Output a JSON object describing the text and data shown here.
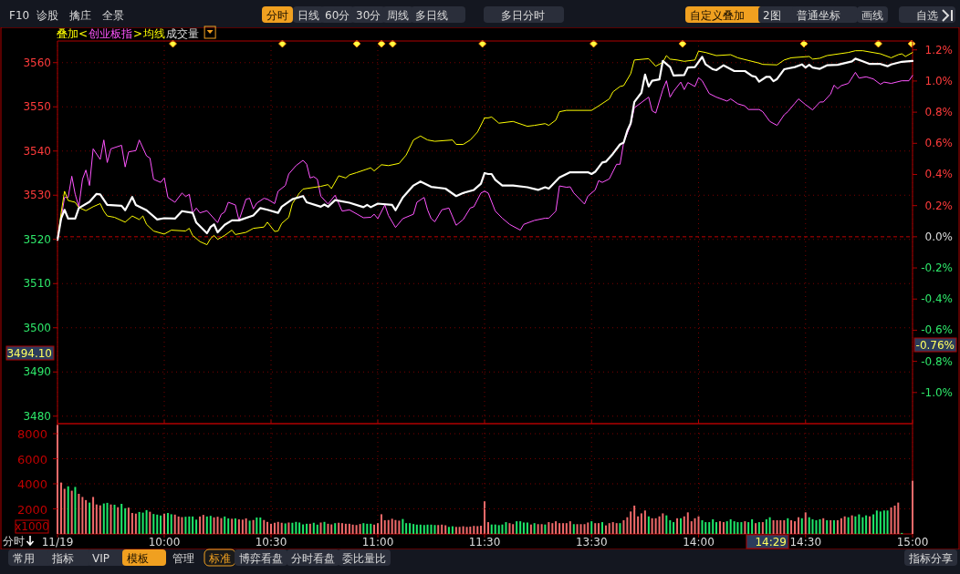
{
  "chart_data": [
    {
      "type": "other",
      "annotations": [
        "F10",
        "诊股",
        "擒庄",
        "全景",
        "分时",
        "日线",
        "60分",
        "30分",
        "周线",
        "多日线",
        "多日分时",
        "自定义叠加",
        "2图",
        "普通坐标",
        "画线",
        "自选",
        "分时",
        "常用",
        "指标",
        "VIP",
        "模板",
        "管理",
        "标准",
        "博弈看盘",
        "分时看盘",
        "委比量比",
        "指标分享"
      ]
    },
    {
      "type": "line",
      "xlim": [
        9.5,
        11.5
      ],
      "ylim": [
        3478.3,
        3564.9
      ],
      "xticks": [
        {
          "value": 9.5,
          "label": null
        },
        {
          "value": 10,
          "label": null
        },
        {
          "value": 10.5,
          "label": null
        },
        {
          "value": 11,
          "label": null
        },
        {
          "value": 11.5,
          "label": null
        }
      ],
      "yticks": [
        3480,
        3490,
        3500,
        3510,
        3520,
        3530,
        3540,
        3550,
        3560
      ],
      "tick_labels": "y",
      "grid": true,
      "ref_lines": [
        {
          "axis": "y",
          "value": 3520.6,
          "color": "#c00000",
          "line_style": "dashed"
        }
      ],
      "annotations": [
        "叠加<",
        ">",
        "成交量",
        "3494.10"
      ],
      "series": [
        {
          "name": "创业板指",
          "color": "#ff55ff",
          "x": [
            9.5,
            9.517,
            9.533,
            9.55,
            9.567,
            9.583,
            9.6,
            9.617,
            9.633,
            9.65,
            9.667,
            9.7,
            9.717,
            9.733,
            9.75,
            9.8,
            9.817,
            9.833,
            9.867,
            9.883,
            9.917,
            9.933,
            9.95,
            9.983,
            10,
            10.017,
            10.05,
            10.083,
            10.1,
            10.117,
            10.133,
            10.15,
            10.167,
            10.2,
            10.25,
            10.267,
            10.283,
            10.3,
            10.333,
            10.35,
            10.383,
            10.4,
            10.417,
            10.433,
            10.467,
            10.483,
            10.517,
            10.533,
            10.567,
            10.583,
            10.617,
            10.65,
            10.667,
            10.683,
            10.7,
            10.717,
            10.733,
            10.767,
            10.8,
            10.833,
            10.867,
            10.933,
            10.967,
            10.983,
            11,
            11.033,
            11.05,
            11.083,
            11.117,
            11.167,
            11.183,
            11.217,
            11.233,
            11.25,
            11.267,
            11.3,
            11.333,
            11.367,
            11.4,
            11.433,
            11.45,
            11.483,
            11.5
          ],
          "values": [
            3519.9,
            3524.7,
            3529.5,
            3529.5,
            3534.3,
            3530.2,
            3527.4,
            3533.6,
            3535.7,
            3532.2,
            3540.5,
            3538.1,
            3542.5,
            3537.4,
            3540.5,
            3541.3,
            3536.4,
            3539.8,
            3540.1,
            3542.5,
            3538.9,
            3538.4,
            3533.6,
            3532.9,
            3533.9,
            3529.5,
            3528.4,
            3530.5,
            3529.7,
            3530.2,
            3526.0,
            3527.1,
            3526.0,
            3526.5,
            3523.8,
            3525.7,
            3526.2,
            3528.4,
            3527.8,
            3524.3,
            3529.1,
            3529.3,
            3526.9,
            3528.2,
            3529.3,
            3529.1,
            3528.1,
            3530.9,
            3532.2,
            3534.8,
            3536.7,
            3537.9,
            3537.0,
            3533.9,
            3534.2,
            3533.6,
            3529.8,
            3528.0,
            3530.0,
            3526.4,
            3526.7,
            3524.9,
            3525.0,
            3525.7,
            3524.7,
            3527.8,
            3525.4,
            3522.7,
            3524.7,
            3525.7,
            3528.4,
            3529.5,
            3526.7,
            3524.7,
            3524.0,
            3526.7,
            3527.1,
            3523.2,
            3524.5,
            3527.1,
            3527.4,
            3530.5,
            3530.9
          ]
        },
        {
          "name": "均线",
          "color": "#ffff00",
          "x": [
            9.5,
            9.517,
            9.533,
            9.55,
            9.583,
            9.6,
            9.633,
            9.667,
            9.7,
            9.717,
            9.733,
            9.767,
            9.817,
            9.85,
            9.883,
            9.9,
            9.917,
            9.95,
            10,
            10.033,
            10.1,
            10.117,
            10.133,
            10.167,
            10.2,
            10.217,
            10.233,
            10.25,
            10.283,
            10.317,
            10.333,
            10.383,
            10.417,
            10.467,
            10.483,
            10.517,
            10.533,
            10.55,
            10.583,
            10.6,
            10.633,
            10.65,
            10.733,
            10.767,
            10.783,
            10.817,
            10.85,
            10.867,
            10.9,
            10.967,
            10.983,
            11.017,
            11.05,
            11.1,
            11.133,
            11.167,
            11.2,
            11.233,
            11.267,
            11.35,
            11.367,
            11.4,
            11.433,
            11.467,
            11.5
          ],
          "values": [
            3519.9,
            3526.0,
            3530.9,
            3528.8,
            3528.4,
            3527.2,
            3526.5,
            3527.4,
            3528.1,
            3526.4,
            3525.3,
            3525.0,
            3523.9,
            3525.3,
            3524.5,
            3525.3,
            3523.4,
            3521.9,
            3521.2,
            3522.1,
            3521.9,
            3522.5,
            3520.9,
            3519.5,
            3518.8,
            3520.2,
            3520.9,
            3520.0,
            3520.9,
            3522.1,
            3521.1,
            3521.6,
            3522.5,
            3522.8,
            3523.9,
            3521.8,
            3521.9,
            3523.6,
            3525.0,
            3528.1,
            3530.5,
            3531.4,
            3532.0,
            3532.4,
            3531.5,
            3534.4,
            3533.9,
            3534.6,
            3535.1,
            3536.2,
            3535.5,
            3536.9,
            3536.7,
            3537.2,
            3539.1,
            3542.5,
            3543.4,
            3542.5,
            3542.2,
            3542.5,
            3541.5,
            3541.5,
            3542.5,
            3544.3,
            3547.5
          ]
        },
        {
          "color": "#ffffff",
          "x": [
            9.5,
            9.517,
            9.533,
            9.55,
            9.583,
            9.6,
            9.65,
            9.683,
            9.7,
            9.733,
            9.8,
            9.817,
            9.85,
            9.867,
            9.917,
            9.967,
            10,
            10.05,
            10.083,
            10.133,
            10.15,
            10.2,
            10.217,
            10.233,
            10.25,
            10.283,
            10.317,
            10.35,
            10.417,
            10.45,
            10.483,
            10.533,
            10.55,
            10.6,
            10.65,
            10.667,
            10.733,
            10.75,
            10.767,
            10.8,
            10.867,
            10.933,
            10.95,
            10.967,
            11,
            11.067,
            11.083,
            11.117,
            11.167,
            11.2,
            11.25,
            11.317,
            11.367,
            11.4,
            11.45,
            11.483,
            11.5
          ],
          "values": [
            3519.9,
            3524.7,
            3526.7,
            3524.7,
            3524.7,
            3527.1,
            3528.5,
            3530.3,
            3530.2,
            3527.8,
            3527.6,
            3526.6,
            3529.6,
            3527.8,
            3526.6,
            3524.5,
            3524.8,
            3524.7,
            3526.4,
            3526.0,
            3523.8,
            3521.4,
            3522.8,
            3523.4,
            3521.6,
            3523.3,
            3524.3,
            3524.3,
            3525.4,
            3527.1,
            3526.7,
            3526.0,
            3527.4,
            3529.1,
            3529.8,
            3528.4,
            3527.4,
            3527.9,
            3527.4,
            3528.9,
            3528.3,
            3527.3,
            3527.8,
            3527.3,
            3528.1,
            3527.8,
            3526.6,
            3529.5,
            3532.2,
            3533.1,
            3531.9,
            3531.5,
            3529.8,
            3530.5,
            3531.2,
            3532.6,
            3535.0
          ]
        }
      ]
    },
    {
      "type": "line",
      "xlim": [
        13,
        15
      ],
      "ylim": [
        3478.3,
        3564.9
      ],
      "y2lim": [
        -1.2,
        1.257
      ],
      "xticks": [
        {
          "value": 13.5,
          "label": null
        },
        {
          "value": 14,
          "label": null
        },
        {
          "value": 14.5,
          "label": null
        },
        {
          "value": 15,
          "label": null
        }
      ],
      "yticks": [
        3480,
        3490,
        3500,
        3510,
        3520,
        3530,
        3540,
        3550,
        3560
      ],
      "y2ticks": [
        {
          "value": 1.2,
          "label": "1.2%"
        },
        {
          "value": 1.0,
          "label": "1.0%"
        },
        {
          "value": 0.8,
          "label": "0.8%"
        },
        {
          "value": 0.6,
          "label": "0.6%"
        },
        {
          "value": 0.4,
          "label": "0.4%"
        },
        {
          "value": 0.2,
          "label": "0.2%"
        },
        {
          "value": 0,
          "label": "0.0%"
        },
        {
          "value": -0.2,
          "label": "-0.2%"
        },
        {
          "value": -0.4,
          "label": "-0.4%"
        },
        {
          "value": -0.6,
          "label": "-0.6%"
        },
        {
          "value": -0.8,
          "label": "-0.8%"
        },
        {
          "value": -1.0,
          "label": "-1.0%"
        }
      ],
      "tick_labels": false,
      "grid": true,
      "ref_lines": [
        {
          "axis": "y2",
          "value": 0,
          "color": "#c00000",
          "line_style": "dashed"
        }
      ],
      "annotations": [
        "-0.76%"
      ],
      "series": [
        {
          "color": "#ff55ff",
          "x": [
            13,
            13.017,
            13.05,
            13.083,
            13.117,
            13.167,
            13.183,
            13.233,
            13.283,
            13.3,
            13.333,
            13.35,
            13.383,
            13.4,
            13.417,
            13.467,
            13.483,
            13.517,
            13.533,
            13.55,
            13.583,
            13.617,
            13.633,
            13.65,
            13.683,
            13.7,
            13.717,
            13.767,
            13.783,
            13.8,
            13.833,
            13.85,
            13.867,
            13.883,
            13.917,
            13.933,
            13.95,
            13.983,
            14,
            14.017,
            14.05,
            14.083,
            14.133,
            14.15,
            14.183,
            14.217,
            14.233,
            14.283,
            14.3,
            14.333,
            14.367,
            14.4,
            14.417,
            14.45,
            14.467,
            14.5,
            14.533,
            14.567,
            14.583,
            14.617,
            14.633,
            14.65,
            14.667,
            14.7,
            14.733,
            14.75,
            14.783,
            14.817,
            14.85,
            14.867,
            14.9,
            14.95,
            14.983,
            15
          ],
          "values": [
            3530.9,
            3530.5,
            3526.4,
            3524.8,
            3523.4,
            3522.1,
            3523.4,
            3524.3,
            3524.8,
            3524.8,
            3526.4,
            3532.1,
            3531.8,
            3531.9,
            3530.5,
            3528.0,
            3529.8,
            3531.2,
            3533.3,
            3532.9,
            3533.7,
            3537.0,
            3537.0,
            3541.9,
            3546.0,
            3549.8,
            3550.4,
            3552.2,
            3549.1,
            3548.6,
            3553.9,
            3555.9,
            3552.2,
            3553.5,
            3555.6,
            3553.9,
            3555.5,
            3554.6,
            3556.6,
            3555.9,
            3553.0,
            3552.2,
            3551.3,
            3551.8,
            3550.7,
            3550.2,
            3549.4,
            3549.4,
            3548.9,
            3546.7,
            3545.8,
            3548.2,
            3548.9,
            3550.8,
            3551.8,
            3550.5,
            3549.3,
            3551.1,
            3551.1,
            3552.9,
            3554.9,
            3554.1,
            3554.8,
            3555.3,
            3557.8,
            3556.5,
            3556.8,
            3556.3,
            3555.1,
            3555.6,
            3555.3,
            3555.9,
            3555.9,
            3557.1
          ]
        },
        {
          "color": "#ffff00",
          "x": [
            13,
            13.017,
            13.033,
            13.067,
            13.133,
            13.2,
            13.233,
            13.283,
            13.3,
            13.333,
            13.35,
            13.383,
            13.5,
            13.533,
            13.583,
            13.6,
            13.633,
            13.65,
            13.683,
            13.7,
            13.767,
            13.8,
            13.833,
            13.85,
            13.867,
            13.9,
            13.933,
            13.983,
            14,
            14.033,
            14.083,
            14.15,
            14.183,
            14.283,
            14.3,
            14.367,
            14.4,
            14.433,
            14.517,
            14.533,
            14.567,
            14.6,
            14.7,
            14.733,
            14.767,
            14.85,
            14.9,
            14.933,
            14.95,
            14.967,
            15
          ],
          "values": [
            3547.5,
            3547.5,
            3547.7,
            3546.3,
            3546.7,
            3545.6,
            3545.8,
            3546.2,
            3545.8,
            3547.0,
            3548.9,
            3549.2,
            3549.2,
            3550.2,
            3551.8,
            3553.4,
            3554.6,
            3554.8,
            3557.5,
            3560.6,
            3560.9,
            3559.2,
            3560.1,
            3561.6,
            3560.8,
            3560.6,
            3560.3,
            3560.6,
            3562.6,
            3562.3,
            3561.6,
            3561.8,
            3561.1,
            3559.9,
            3559.6,
            3559.5,
            3560.6,
            3561.1,
            3561.4,
            3560.8,
            3561.0,
            3561.6,
            3562.3,
            3562.7,
            3562.7,
            3562.0,
            3561.1,
            3561.8,
            3562.0,
            3561.4,
            3562.3
          ]
        },
        {
          "color": "#ffffff",
          "x": [
            13,
            13.017,
            13.033,
            13.05,
            13.083,
            13.133,
            13.2,
            13.25,
            13.283,
            13.3,
            13.35,
            13.4,
            13.483,
            13.5,
            13.517,
            13.55,
            13.567,
            13.6,
            13.633,
            13.65,
            13.667,
            13.683,
            13.7,
            13.733,
            13.75,
            13.767,
            13.783,
            13.817,
            13.833,
            13.867,
            13.883,
            13.933,
            13.95,
            13.983,
            14.017,
            14.033,
            14.067,
            14.083,
            14.117,
            14.167,
            14.217,
            14.25,
            14.267,
            14.283,
            14.317,
            14.333,
            14.35,
            14.367,
            14.4,
            14.45,
            14.483,
            14.5,
            14.517,
            14.533,
            14.567,
            14.6,
            14.65,
            14.717,
            14.733,
            14.767,
            14.8,
            14.85,
            14.883,
            14.9,
            14.95,
            15
          ],
          "values": [
            3535.0,
            3534.8,
            3534.8,
            3533.5,
            3532.2,
            3532.2,
            3531.8,
            3531.2,
            3531.8,
            3531.5,
            3534.0,
            3535.2,
            3535.2,
            3534.8,
            3535.3,
            3537.4,
            3537.6,
            3539.4,
            3541.5,
            3541.9,
            3544.6,
            3546.3,
            3551.1,
            3553.2,
            3557.3,
            3554.6,
            3555.9,
            3556.2,
            3560.4,
            3559.0,
            3557.1,
            3557.2,
            3558.9,
            3559.0,
            3561.3,
            3559.6,
            3558.5,
            3558.3,
            3559.4,
            3558.1,
            3558.1,
            3557.0,
            3556.8,
            3555.7,
            3556.8,
            3556.8,
            3555.8,
            3556.3,
            3558.5,
            3559.0,
            3559.6,
            3558.9,
            3559.5,
            3558.9,
            3558.6,
            3559.4,
            3559.5,
            3560.3,
            3560.9,
            3560.3,
            3559.7,
            3559.7,
            3559.2,
            3559.6,
            3560.2,
            3560.4
          ]
        }
      ]
    },
    {
      "type": "bar",
      "xlim": [
        9.5,
        11.5
      ],
      "ylim": [
        0,
        8800
      ],
      "yticks": [
        2000,
        4000,
        6000,
        8000
      ],
      "ylabel": "x1000",
      "grid": true,
      "xticks": [
        {
          "value": 9.5,
          "label": "11/19"
        },
        {
          "value": 10,
          "label": "10:00"
        },
        {
          "value": 10.5,
          "label": "10:30"
        },
        {
          "value": 11,
          "label": "11:00"
        },
        {
          "value": 11.5,
          "label": "11:30"
        }
      ],
      "x": [
        9.5,
        9.517,
        9.533,
        9.55,
        9.567,
        9.583,
        9.6,
        9.617,
        9.633,
        9.65,
        9.667,
        9.683,
        9.7,
        9.717,
        9.733,
        9.75,
        9.767,
        9.783,
        9.8,
        9.817,
        9.833,
        9.85,
        9.867,
        9.883,
        9.9,
        9.917,
        9.933,
        9.95,
        9.967,
        9.983,
        10,
        10.017,
        10.033,
        10.05,
        10.067,
        10.083,
        10.1,
        10.117,
        10.133,
        10.15,
        10.167,
        10.183,
        10.2,
        10.217,
        10.233,
        10.25,
        10.267,
        10.283,
        10.3,
        10.317,
        10.333,
        10.35,
        10.367,
        10.383,
        10.4,
        10.417,
        10.433,
        10.45,
        10.467,
        10.483,
        10.5,
        10.517,
        10.533,
        10.55,
        10.567,
        10.583,
        10.6,
        10.617,
        10.633,
        10.65,
        10.667,
        10.683,
        10.7,
        10.717,
        10.733,
        10.75,
        10.767,
        10.783,
        10.8,
        10.817,
        10.833,
        10.85,
        10.867,
        10.883,
        10.9,
        10.917,
        10.933,
        10.95,
        10.967,
        10.983,
        11,
        11.017,
        11.033,
        11.05,
        11.067,
        11.083,
        11.1,
        11.117,
        11.133,
        11.15,
        11.167,
        11.183,
        11.2,
        11.217,
        11.233,
        11.25,
        11.267,
        11.283,
        11.3,
        11.317,
        11.333,
        11.35,
        11.367,
        11.383,
        11.4,
        11.417,
        11.433,
        11.45,
        11.467,
        11.483,
        11.5
      ],
      "series": [
        {
          "color": "#f06a6a",
          "values": [
            8700,
            4100,
            3600,
            null,
            3450,
            null,
            3200,
            2950,
            2700,
            null,
            2950,
            2350,
            2280,
            null,
            null,
            2350,
            null,
            2130,
            null,
            null,
            2100,
            1670,
            1620,
            null,
            null,
            null,
            1770,
            null,
            null,
            null,
            1620,
            null,
            null,
            1540,
            1390,
            1340,
            null,
            null,
            null,
            null,
            1390,
            1520,
            null,
            null,
            1320,
            1370,
            1260,
            null,
            null,
            1210,
            null,
            1160,
            1140,
            1240,
            null,
            1110,
            null,
            null,
            1110,
            960,
            810,
            890,
            960,
            890,
            null,
            910,
            null,
            null,
            null,
            null,
            null,
            810,
            null,
            null,
            910,
            null,
            810,
            760,
            null,
            890,
            860,
            810,
            810,
            740,
            710,
            790,
            null,
            null,
            null,
            740,
            860,
            1570,
            1090,
            1110,
            1210,
            1110,
            1060,
            null,
            null,
            null,
            null,
            null,
            null,
            null,
            null,
            null,
            null,
            710,
            740,
            690,
            null,
            null,
            560,
            560,
            610,
            560,
            580,
            640,
            620,
            650,
            2600
          ]
        },
        {
          "color": "#1ee86a",
          "values": [
            null,
            null,
            null,
            3800,
            null,
            3750,
            null,
            null,
            null,
            2500,
            null,
            null,
            null,
            2430,
            2480,
            null,
            2330,
            null,
            2400,
            2050,
            null,
            null,
            null,
            1750,
            1700,
            1900,
            null,
            1590,
            1540,
            1470,
            null,
            1670,
            1570,
            null,
            null,
            null,
            1370,
            1390,
            1390,
            1140,
            null,
            null,
            1390,
            1440,
            null,
            null,
            null,
            1390,
            1240,
            null,
            1240,
            null,
            null,
            null,
            1060,
            null,
            1310,
            1310,
            null,
            null,
            null,
            null,
            null,
            null,
            840,
            null,
            890,
            960,
            910,
            760,
            810,
            null,
            890,
            740,
            null,
            960,
            null,
            null,
            860,
            null,
            null,
            null,
            null,
            null,
            null,
            null,
            860,
            810,
            810,
            null,
            null,
            null,
            null,
            null,
            null,
            null,
            null,
            1190,
            860,
            860,
            790,
            740,
            740,
            710,
            740,
            740,
            710,
            null,
            null,
            null,
            560,
            610,
            null,
            null,
            null,
            null,
            null,
            null,
            null,
            null,
            null
          ]
        }
      ]
    },
    {
      "type": "bar",
      "xlim": [
        13,
        15
      ],
      "ylim": [
        0,
        8800
      ],
      "yticks": [
        2000,
        4000,
        6000,
        8000
      ],
      "tick_labels": "x",
      "grid": true,
      "xticks": [
        {
          "value": 13.5,
          "label": "13:30"
        },
        {
          "value": 14,
          "label": "14:00"
        },
        {
          "value": 14.5,
          "label": "14:30"
        },
        {
          "value": 15,
          "label": "15:00"
        }
      ],
      "annotations": [
        "14:29"
      ],
      "x": [
        13.017,
        13.033,
        13.05,
        13.067,
        13.083,
        13.1,
        13.117,
        13.133,
        13.15,
        13.167,
        13.183,
        13.2,
        13.217,
        13.233,
        13.25,
        13.267,
        13.283,
        13.3,
        13.317,
        13.333,
        13.35,
        13.367,
        13.383,
        13.4,
        13.417,
        13.433,
        13.45,
        13.467,
        13.483,
        13.5,
        13.517,
        13.533,
        13.55,
        13.567,
        13.583,
        13.6,
        13.617,
        13.633,
        13.65,
        13.667,
        13.683,
        13.7,
        13.717,
        13.733,
        13.75,
        13.767,
        13.783,
        13.8,
        13.817,
        13.833,
        13.85,
        13.867,
        13.883,
        13.9,
        13.917,
        13.933,
        13.95,
        13.967,
        13.983,
        14,
        14.017,
        14.033,
        14.05,
        14.067,
        14.083,
        14.1,
        14.117,
        14.133,
        14.15,
        14.167,
        14.183,
        14.2,
        14.217,
        14.233,
        14.25,
        14.267,
        14.283,
        14.3,
        14.317,
        14.333,
        14.35,
        14.367,
        14.383,
        14.4,
        14.417,
        14.433,
        14.45,
        14.467,
        14.483,
        14.5,
        14.517,
        14.533,
        14.55,
        14.567,
        14.583,
        14.6,
        14.617,
        14.633,
        14.65,
        14.667,
        14.683,
        14.7,
        14.717,
        14.733,
        14.75,
        14.767,
        14.783,
        14.8,
        14.817,
        14.833,
        14.85,
        14.867,
        14.883,
        14.9,
        14.917,
        14.933,
        14.95,
        14.967,
        14.983,
        15
      ],
      "series": [
        {
          "color": "#f06a6a",
          "values": [
            940,
            null,
            null,
            null,
            null,
            null,
            860,
            780,
            null,
            null,
            null,
            null,
            750,
            null,
            780,
            780,
            null,
            940,
            860,
            1010,
            860,
            860,
            860,
            1010,
            null,
            780,
            780,
            780,
            910,
            null,
            860,
            860,
            null,
            680,
            860,
            940,
            860,
            null,
            1090,
            1330,
            1790,
            2260,
            1400,
            1640,
            1870,
            null,
            1250,
            1250,
            1400,
            1640,
            null,
            null,
            null,
            1250,
            null,
            1400,
            1720,
            1010,
            1250,
            1400,
            null,
            null,
            null,
            null,
            null,
            1010,
            940,
            null,
            null,
            null,
            null,
            null,
            1010,
            null,
            null,
            860,
            null,
            940,
            null,
            null,
            1090,
            1090,
            1090,
            1090,
            null,
            1090,
            1010,
            1330,
            null,
            1720,
            null,
            null,
            null,
            null,
            1250,
            null,
            1090,
            null,
            1090,
            1250,
            1400,
            null,
            1480,
            null,
            null,
            null,
            null,
            1400,
            null,
            null,
            null,
            null,
            null,
            2110,
            2260,
            2500,
            null,
            null,
            null,
            4240
          ]
        },
        {
          "color": "#1ee86a",
          "values": [
            null,
            750,
            750,
            700,
            750,
            940,
            null,
            null,
            1010,
            1010,
            910,
            910,
            null,
            860,
            null,
            null,
            750,
            null,
            null,
            null,
            null,
            null,
            null,
            null,
            780,
            null,
            null,
            null,
            null,
            1010,
            null,
            null,
            940,
            null,
            null,
            null,
            null,
            860,
            null,
            null,
            null,
            null,
            null,
            null,
            null,
            1400,
            null,
            null,
            null,
            null,
            1480,
            1090,
            940,
            null,
            1250,
            null,
            null,
            null,
            null,
            null,
            1090,
            940,
            940,
            1170,
            940,
            null,
            null,
            1010,
            1170,
            1010,
            940,
            940,
            null,
            940,
            1170,
            null,
            940,
            null,
            1170,
            1330,
            null,
            null,
            null,
            null,
            1250,
            null,
            null,
            null,
            1250,
            null,
            1330,
            1170,
            1090,
            1170,
            null,
            1090,
            null,
            1090,
            null,
            null,
            null,
            1330,
            null,
            1400,
            1560,
            1330,
            1480,
            null,
            1560,
            1870,
            1790,
            1870,
            1870,
            null,
            null,
            null,
            80,
            null,
            null,
            null
          ]
        }
      ]
    }
  ]
}
